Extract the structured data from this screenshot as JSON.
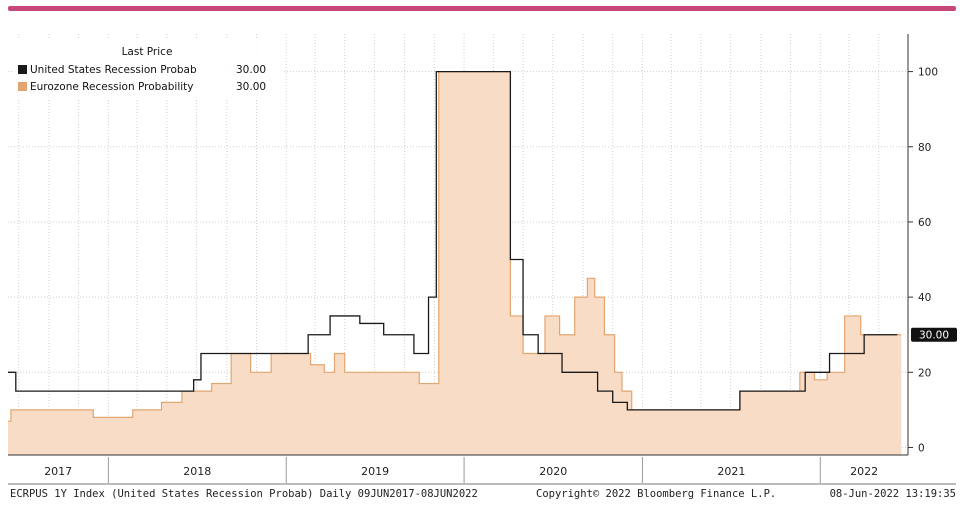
{
  "colors": {
    "brand_bar": "#c6487a",
    "area_fill": "#f8dcc6",
    "area_line": "#e3a56f",
    "us_line": "#1a1a1a",
    "grid": "#cfcfcf",
    "label_bg": "#111111"
  },
  "footer": {
    "left": "ECRPUS 1Y Index (United States Recession Probab) Daily 09JUN2017-08JUN2022",
    "middle": "Copyright© 2022 Bloomberg Finance L.P.",
    "right": "08-Jun-2022 13:19:35"
  },
  "chart_data": {
    "type": "line",
    "legend": {
      "title": "Last Price",
      "placement": "top-left",
      "entries": [
        {
          "name": "United States Recession Probab",
          "value": "30.00",
          "color": "#1a1a1a"
        },
        {
          "name": "Eurozone Recession Probability",
          "value": "30.00",
          "color": "#e3a56f"
        }
      ]
    },
    "last_value_label": "30.00",
    "x_tick_labels": [
      "2017",
      "2018",
      "2019",
      "2020",
      "2021",
      "2022"
    ],
    "y_ticks": [
      0,
      20,
      40,
      60,
      80,
      100
    ],
    "ylim": [
      -2,
      110
    ],
    "xlim": [
      "2017-06-09",
      "2022-06-30"
    ],
    "grid": true,
    "series": [
      {
        "name": "United States Recession Probab",
        "style": "step-line",
        "points": [
          [
            "2017-06-09",
            20
          ],
          [
            "2017-06-25",
            15
          ],
          [
            "2018-06-01",
            15
          ],
          [
            "2018-06-25",
            18
          ],
          [
            "2018-07-10",
            25
          ],
          [
            "2019-01-02",
            25
          ],
          [
            "2019-02-15",
            30
          ],
          [
            "2019-04-01",
            35
          ],
          [
            "2019-06-01",
            33
          ],
          [
            "2019-07-20",
            30
          ],
          [
            "2019-09-20",
            25
          ],
          [
            "2019-10-20",
            40
          ],
          [
            "2019-11-05",
            100
          ],
          [
            "2020-04-05",
            50
          ],
          [
            "2020-05-01",
            30
          ],
          [
            "2020-06-01",
            25
          ],
          [
            "2020-07-20",
            20
          ],
          [
            "2020-10-01",
            15
          ],
          [
            "2020-11-01",
            12
          ],
          [
            "2020-12-01",
            10
          ],
          [
            "2021-07-20",
            15
          ],
          [
            "2021-12-01",
            20
          ],
          [
            "2022-01-20",
            25
          ],
          [
            "2022-04-01",
            30
          ],
          [
            "2022-06-08",
            30
          ]
        ]
      },
      {
        "name": "Eurozone Recession Probability",
        "style": "step-area",
        "points": [
          [
            "2017-06-09",
            7
          ],
          [
            "2017-06-15",
            10
          ],
          [
            "2017-10-01",
            10
          ],
          [
            "2017-12-01",
            8
          ],
          [
            "2018-02-20",
            10
          ],
          [
            "2018-04-20",
            12
          ],
          [
            "2018-06-01",
            15
          ],
          [
            "2018-08-01",
            17
          ],
          [
            "2018-09-10",
            25
          ],
          [
            "2018-10-20",
            20
          ],
          [
            "2018-12-01",
            25
          ],
          [
            "2019-01-10",
            25
          ],
          [
            "2019-02-20",
            22
          ],
          [
            "2019-03-20",
            20
          ],
          [
            "2019-04-10",
            25
          ],
          [
            "2019-05-01",
            20
          ],
          [
            "2019-10-01",
            17
          ],
          [
            "2019-11-10",
            100
          ],
          [
            "2020-04-05",
            35
          ],
          [
            "2020-05-01",
            25
          ],
          [
            "2020-06-15",
            35
          ],
          [
            "2020-07-15",
            30
          ],
          [
            "2020-08-15",
            40
          ],
          [
            "2020-09-10",
            45
          ],
          [
            "2020-09-25",
            40
          ],
          [
            "2020-10-15",
            30
          ],
          [
            "2020-11-05",
            20
          ],
          [
            "2020-11-20",
            15
          ],
          [
            "2020-12-10",
            10
          ],
          [
            "2021-07-20",
            15
          ],
          [
            "2021-11-20",
            20
          ],
          [
            "2021-12-20",
            18
          ],
          [
            "2022-01-15",
            20
          ],
          [
            "2022-02-20",
            35
          ],
          [
            "2022-03-25",
            30
          ],
          [
            "2022-06-08",
            30
          ]
        ]
      }
    ]
  }
}
